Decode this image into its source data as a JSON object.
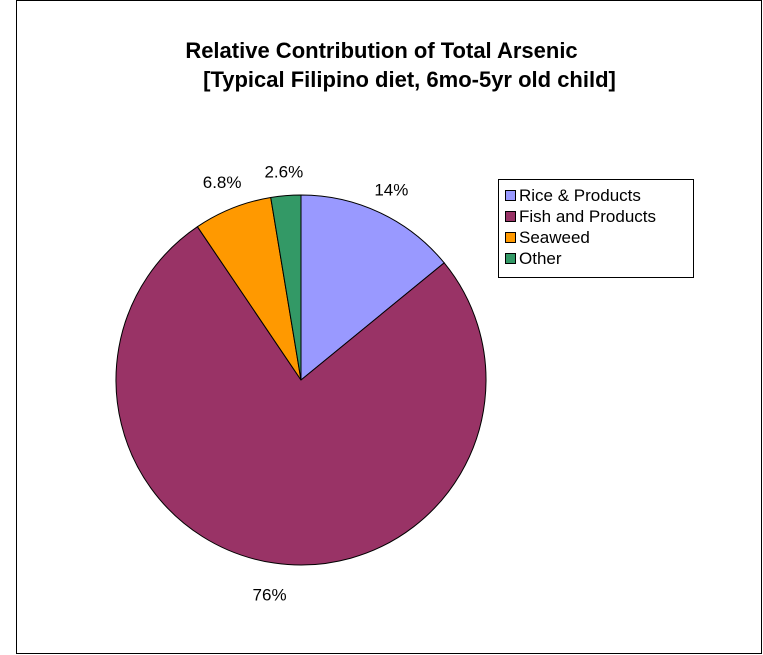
{
  "chart_data": {
    "type": "pie",
    "title_line1": "Relative Contribution of Total Arsenic",
    "title_line2": "[Typical Filipino diet, 6mo-5yr old child]",
    "slices": [
      {
        "name": "Rice & Products",
        "value": 14,
        "label": "14%",
        "color": "#9999ff"
      },
      {
        "name": "Fish and Products",
        "value": 76,
        "label": "76%",
        "color": "#993366"
      },
      {
        "name": "Seaweed",
        "value": 6.8,
        "label": "6.8%",
        "color": "#ff9900"
      },
      {
        "name": "Other",
        "value": 2.6,
        "label": "2.6%",
        "color": "#339966"
      }
    ],
    "start": "12 o'clock",
    "direction": "clockwise",
    "legend_position": "right"
  }
}
